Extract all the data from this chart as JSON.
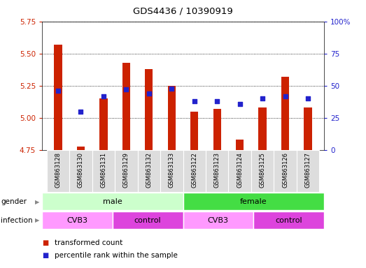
{
  "title": "GDS4436 / 10390919",
  "samples": [
    "GSM863128",
    "GSM863130",
    "GSM863131",
    "GSM863129",
    "GSM863132",
    "GSM863133",
    "GSM863122",
    "GSM863123",
    "GSM863124",
    "GSM863125",
    "GSM863126",
    "GSM863127"
  ],
  "transformed_count": [
    5.57,
    4.78,
    5.15,
    5.43,
    5.38,
    5.25,
    5.05,
    5.07,
    4.83,
    5.08,
    5.32,
    5.08
  ],
  "percentile_rank": [
    46,
    30,
    42,
    47,
    44,
    48,
    38,
    38,
    36,
    40,
    42,
    40
  ],
  "ylim_left": [
    4.75,
    5.75
  ],
  "ylim_right": [
    0,
    100
  ],
  "yticks_left": [
    4.75,
    5.0,
    5.25,
    5.5,
    5.75
  ],
  "yticks_right": [
    0,
    25,
    50,
    75,
    100
  ],
  "bar_color": "#cc2200",
  "dot_color": "#2222cc",
  "bar_bottom": 4.75,
  "gender_groups": [
    {
      "label": "male",
      "start": 0,
      "end": 6,
      "color": "#ccffcc"
    },
    {
      "label": "female",
      "start": 6,
      "end": 12,
      "color": "#44dd44"
    }
  ],
  "infection_groups": [
    {
      "label": "CVB3",
      "start": 0,
      "end": 3,
      "color": "#ff99ff"
    },
    {
      "label": "control",
      "start": 3,
      "end": 6,
      "color": "#dd44dd"
    },
    {
      "label": "CVB3",
      "start": 6,
      "end": 9,
      "color": "#ff99ff"
    },
    {
      "label": "control",
      "start": 9,
      "end": 12,
      "color": "#dd44dd"
    }
  ],
  "legend_items": [
    {
      "label": "transformed count",
      "color": "#cc2200"
    },
    {
      "label": "percentile rank within the sample",
      "color": "#2222cc"
    }
  ],
  "left_tick_color": "#cc2200",
  "right_tick_color": "#2222cc",
  "sample_box_color": "#dddddd",
  "grid_color": "#000000"
}
